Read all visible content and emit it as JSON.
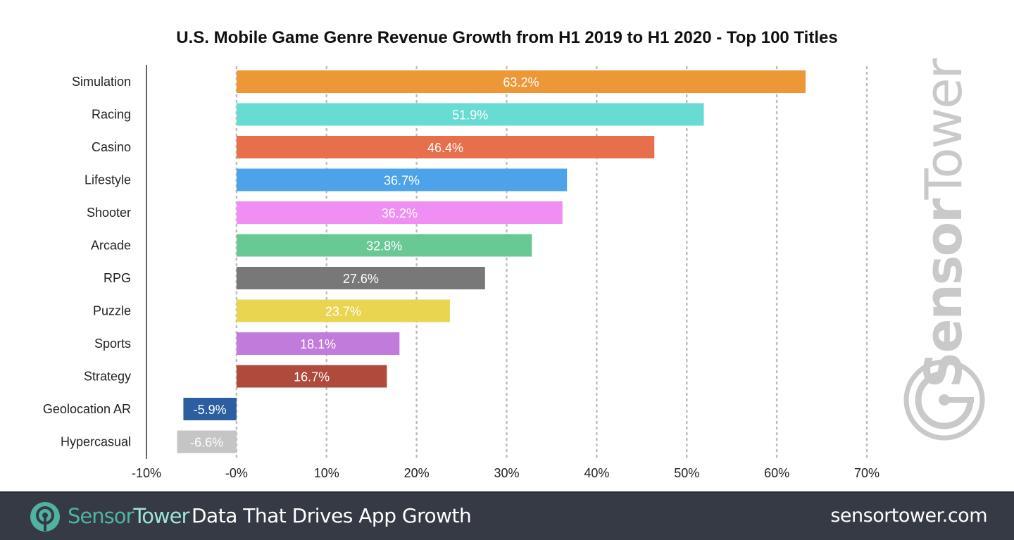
{
  "chart_data": {
    "type": "bar",
    "orientation": "horizontal",
    "title": "U.S. Mobile Game Genre Revenue Growth from H1 2019 to H1 2020 - Top 100 Titles",
    "categories": [
      "Simulation",
      "Racing",
      "Casino",
      "Lifestyle",
      "Shooter",
      "Arcade",
      "RPG",
      "Puzzle",
      "Sports",
      "Strategy",
      "Geolocation AR",
      "Hypercasual"
    ],
    "values": [
      63.2,
      51.9,
      46.4,
      36.7,
      36.2,
      32.8,
      27.6,
      23.7,
      18.1,
      16.7,
      -5.9,
      -6.6
    ],
    "data_labels": [
      "63.2%",
      "51.9%",
      "46.4%",
      "36.7%",
      "36.2%",
      "32.8%",
      "27.6%",
      "23.7%",
      "18.1%",
      "16.7%",
      "-5.9%",
      "-6.6%"
    ],
    "colors": [
      "#ee9737",
      "#68dcd3",
      "#e86f4c",
      "#4da3ea",
      "#ef8ef3",
      "#68c994",
      "#787878",
      "#e9d54f",
      "#c07bdb",
      "#b04a3c",
      "#2d5fa0",
      "#c5c5c5"
    ],
    "xlim": [
      -10,
      70
    ],
    "x_ticks": [
      -10,
      0,
      10,
      20,
      30,
      40,
      50,
      60,
      70
    ],
    "x_tick_labels": [
      "-10%",
      "-0%",
      "10%",
      "20%",
      "30%",
      "40%",
      "50%",
      "60%",
      "70%"
    ],
    "xlabel": "",
    "ylabel": "",
    "grid": "vertical dotted",
    "legend": "none"
  },
  "watermark": {
    "text_bold": "Sensor",
    "text": "Tower"
  },
  "footer": {
    "brand_a": "Sensor",
    "brand_b": "Tower",
    "tagline": "Data That Drives App Growth",
    "url": "sensortower.com",
    "bg_color": "#363a45",
    "brand_color": "#4fb3a2"
  }
}
